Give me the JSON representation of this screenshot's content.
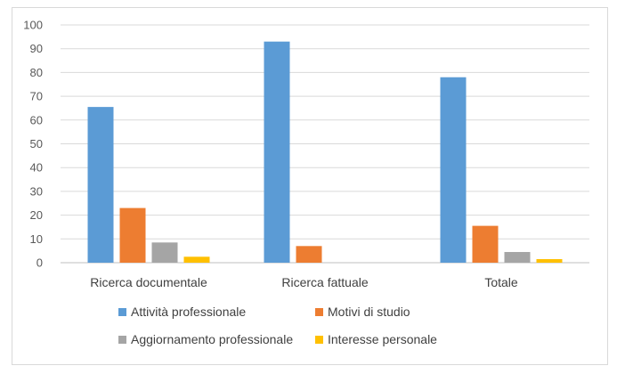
{
  "chart_data": {
    "type": "bar",
    "categories": [
      "Ricerca documentale",
      "Ricerca fattuale",
      "Totale"
    ],
    "series": [
      {
        "name": "Attività professionale",
        "color": "#5b9bd5",
        "values": [
          65.5,
          93,
          78
        ]
      },
      {
        "name": "Motivi di studio",
        "color": "#ed7d31",
        "values": [
          23,
          7,
          15.5
        ]
      },
      {
        "name": "Aggiornamento professionale",
        "color": "#a5a5a5",
        "values": [
          8.5,
          0,
          4.5
        ]
      },
      {
        "name": "Interesse personale",
        "color": "#ffc000",
        "values": [
          2.5,
          0,
          1.5
        ]
      }
    ],
    "ylim": [
      0,
      100
    ],
    "yticks": [
      0,
      10,
      20,
      30,
      40,
      50,
      60,
      70,
      80,
      90,
      100
    ],
    "grid": true,
    "legend": "bottom"
  }
}
